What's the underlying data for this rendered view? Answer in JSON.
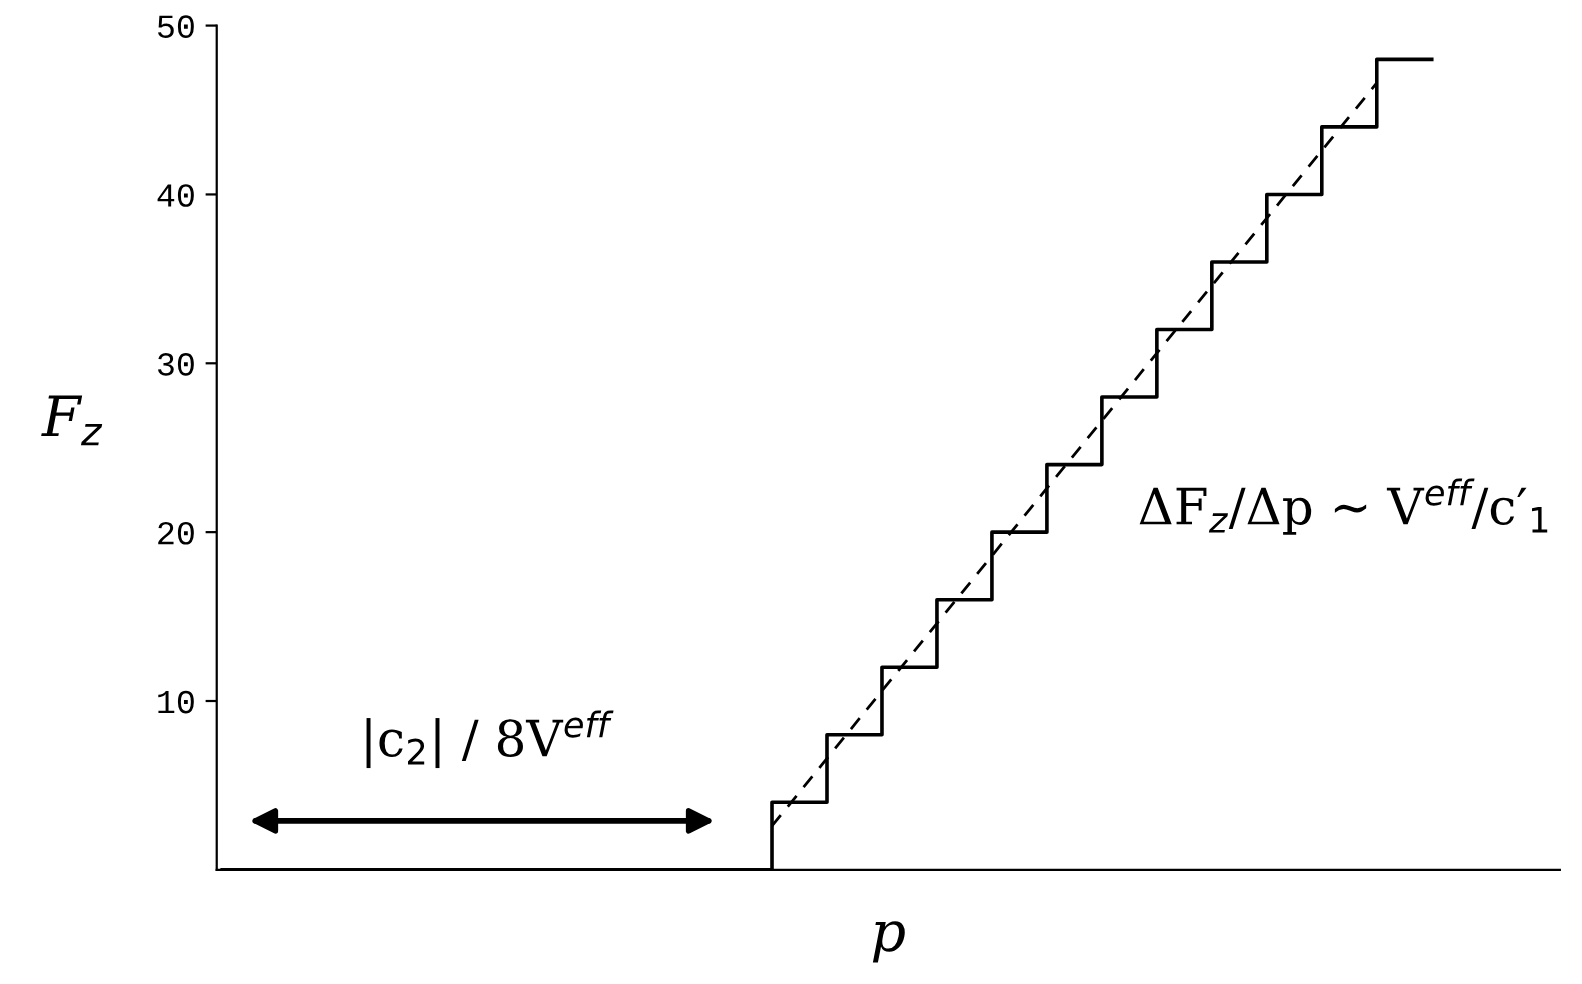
{
  "chart_data": {
    "type": "step",
    "xlabel": "p",
    "ylabel": "F$_{z}$",
    "categories": [
      null,
      null,
      null,
      null,
      null,
      null,
      null,
      null,
      null,
      null,
      null,
      null,
      null,
      null,
      null,
      null,
      null,
      null,
      null,
      null,
      null,
      null,
      null
    ],
    "series": [
      {
        "color": "#000000",
        "line_style": "solid",
        "values": [
          0,
          0,
          0,
          0,
          0,
          0,
          0,
          0,
          0,
          0,
          4,
          8,
          12,
          16,
          20,
          24,
          28,
          32,
          36,
          40,
          44,
          48,
          48
        ]
      },
      {
        "type": "line",
        "color": "#000000",
        "line_style": "dashed",
        "values": [
          null,
          null,
          null,
          null,
          null,
          null,
          null,
          null,
          null,
          null,
          2.6,
          6.6,
          10.6,
          14.6,
          18.6,
          22.6,
          26.6,
          30.6,
          34.6,
          38.6,
          42.6,
          46.6,
          null
        ]
      }
    ],
    "ylim": [
      0,
      50
    ],
    "yticks": [
      10,
      20,
      30,
      40,
      50
    ],
    "tick_labels": "y",
    "grid": false,
    "legend": false,
    "annotations": [
      "|c$_{2}$| / 8V$^{eff}$",
      "ΔF$_{z}$/Δp ∼ V$^{eff}$/c′$_{1}$"
    ]
  }
}
